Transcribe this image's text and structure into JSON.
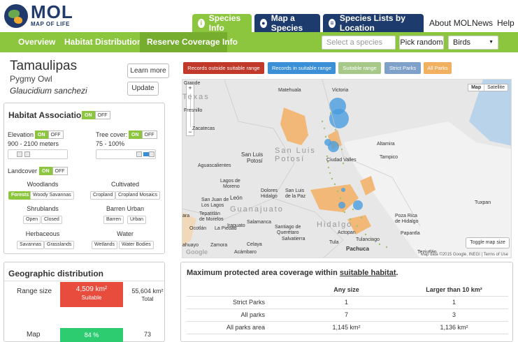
{
  "app": {
    "logo_big": "MOL",
    "logo_small": "MAP OF LIFE"
  },
  "top_tabs": [
    {
      "label": "Species Info",
      "icon": "info-icon",
      "color": "#8cc63f"
    },
    {
      "label": "Map a Species",
      "icon": "location-pin-icon",
      "color": "#1e3b6d"
    },
    {
      "label": "Species Lists by Location",
      "icon": "list-icon",
      "color": "#1e3b6d"
    }
  ],
  "top_links": [
    "About MOL",
    "News",
    "Help"
  ],
  "nav": {
    "items": [
      "Overview",
      "Habitat Distribution",
      "Reserve Coverage",
      "Info"
    ],
    "active": "Reserve Coverage",
    "search_placeholder": "Select a species",
    "pick_random": "Pick random",
    "group_value": "Birds"
  },
  "species": {
    "title": "Tamaulipas",
    "common": "Pygmy Owl",
    "scientific": "Glaucidium sanchezi",
    "learn_more": "Learn more",
    "update": "Update"
  },
  "habitat": {
    "title": "Habitat Associations",
    "on": "ON",
    "off": "OFF",
    "elevation_label": "Elevation",
    "elevation_value": "900 - 2100 meters",
    "tree_label": "Tree cover:",
    "tree_value": "75 - 100%",
    "landcover_label": "Landcover",
    "groups": [
      {
        "name": "Woodlands",
        "chips": [
          "Forests",
          "Woody Savannas"
        ]
      },
      {
        "name": "Cultivated",
        "chips": [
          "Cropland",
          "Cropland Mosaics"
        ]
      },
      {
        "name": "Shrublands",
        "chips": [
          "Open",
          "Closed"
        ]
      },
      {
        "name": "Barren  Urban",
        "chips": [
          "Barren",
          "Urban"
        ]
      },
      {
        "name": "Herbaceous",
        "chips": [
          "Savannas",
          "Grasslands"
        ]
      },
      {
        "name": "Water",
        "chips": [
          "Wetlands",
          "Water Bodies"
        ]
      }
    ]
  },
  "legend": [
    {
      "label": "Records outside suitable range",
      "color": "#c0392b"
    },
    {
      "label": "Records in suitable range",
      "color": "#3a8fd6"
    },
    {
      "label": "Suitable range",
      "color": "#a6c98a"
    },
    {
      "label": "Strict Parks",
      "color": "#7fa0c8"
    },
    {
      "label": "All Parks",
      "color": "#f0b060"
    }
  ],
  "map": {
    "type_map": "Map",
    "type_satellite": "Satellite",
    "zoom_in": "+",
    "zoom_out": "−",
    "toggle": "Toggle map size",
    "attribution": "Map data ©2015 Google, INEGI | Terms of Use",
    "google": "Google",
    "labels": [
      "Grande",
      "Victoria",
      "Matehuala",
      "Fresnillo",
      "Zacatecas",
      "San Luis",
      "Potosí",
      "Ciudad Valles",
      "Altamira",
      "Tampico",
      "Aguascalientes",
      "Lagos de",
      "Moreno",
      "Dolores",
      "Hidalgo",
      "San Luis",
      "de la Paz",
      "León",
      "San Juan de",
      "Los Lagos",
      "Tepatitlán",
      "de Morelos",
      "Irapuato",
      "Salamanca",
      "Santiago de",
      "Querétaro",
      "Actopan",
      "Tuxpan",
      "Poza Rica",
      "de Hidalgo",
      "Papantla",
      "Ocotlán",
      "La Piedad",
      "Zamora",
      "Celaya",
      "Tula",
      "Tulancingo",
      "Pachuca",
      "Teziutlán",
      "Acámbaro",
      "Salvatierra",
      "Guanajuato",
      "Hidalgo",
      "Texas",
      "San Luis Potosí",
      "ara",
      "ahuayo"
    ]
  },
  "geo": {
    "title": "Geographic distribution",
    "range_label": "Range size",
    "suitable_value": "4,509 km²",
    "suitable_label": "Suitable",
    "total_value": "55,604 km²",
    "total_label": "Total",
    "map_label": "Map",
    "map_pct": "84 %",
    "map_value": "73"
  },
  "coverage": {
    "title_prefix": "Maximum protected area coverage within ",
    "title_link": "suitable habitat",
    "title_suffix": ".",
    "columns": [
      "Any size",
      "Larger than 10 km²"
    ],
    "rows": [
      {
        "label": "Strict Parks",
        "any": "1",
        "large": "1"
      },
      {
        "label": "All parks",
        "any": "7",
        "large": "3"
      },
      {
        "label": "All parks area",
        "any": "1,145 km²",
        "large": "1,136 km²"
      }
    ]
  }
}
